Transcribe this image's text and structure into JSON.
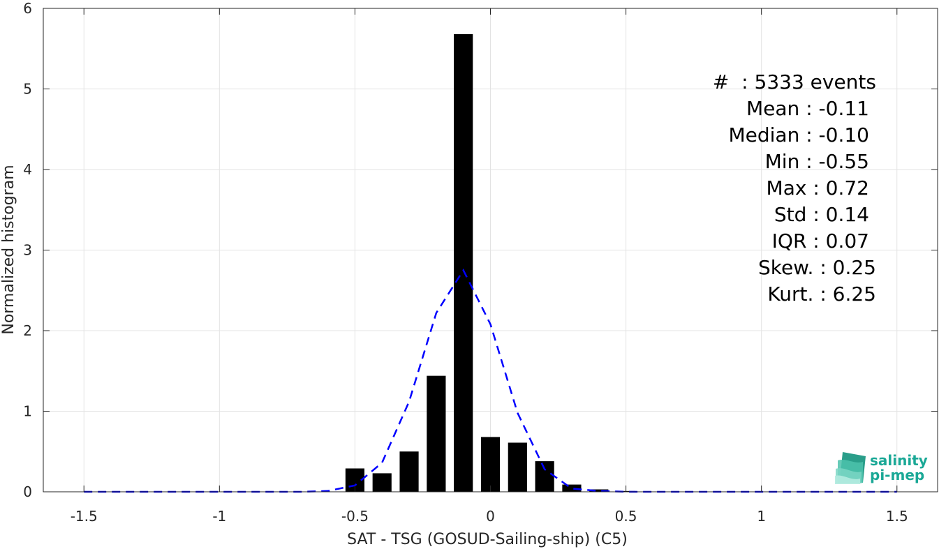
{
  "chart_data": {
    "type": "bar",
    "xlabel": "SAT - TSG (GOSUD-Sailing-ship) (C5)",
    "ylabel": "Normalized histogram",
    "xlim": [
      -1.65,
      1.65
    ],
    "ylim": [
      0,
      6
    ],
    "grid": true,
    "xticks": [
      -1.5,
      -1,
      -0.5,
      0,
      0.5,
      1,
      1.5
    ],
    "xtick_labels": [
      "-1.5",
      "-1",
      "-0.5",
      "0",
      "0.5",
      "1",
      "1.5"
    ],
    "yticks": [
      0,
      1,
      2,
      3,
      4,
      5,
      6
    ],
    "ytick_labels": [
      "0",
      "1",
      "2",
      "3",
      "4",
      "5",
      "6"
    ],
    "bar_width": 0.07,
    "bars": {
      "x": [
        -0.5,
        -0.4,
        -0.3,
        -0.2,
        -0.1,
        0.0,
        0.1,
        0.2,
        0.3,
        0.4,
        0.5
      ],
      "values": [
        0.29,
        0.23,
        0.5,
        1.44,
        5.68,
        0.68,
        0.61,
        0.38,
        0.09,
        0.03,
        0.01
      ],
      "color": "#000000"
    },
    "fit_curve": {
      "style": "dashed",
      "color": "#0000ff",
      "x": [
        -1.5,
        -1.4,
        -1.3,
        -1.2,
        -1.1,
        -1.0,
        -0.9,
        -0.8,
        -0.7,
        -0.6,
        -0.5,
        -0.4,
        -0.3,
        -0.2,
        -0.1,
        0.0,
        0.1,
        0.2,
        0.3,
        0.4,
        0.5,
        0.6,
        0.7,
        0.8,
        0.9,
        1.0,
        1.1,
        1.2,
        1.3,
        1.4,
        1.5
      ],
      "y": [
        0,
        0,
        0,
        0,
        0,
        0,
        0,
        0,
        0,
        0.01,
        0.08,
        0.36,
        1.12,
        2.22,
        2.75,
        2.08,
        0.98,
        0.28,
        0.04,
        0.01,
        0,
        0,
        0,
        0,
        0,
        0,
        0,
        0,
        0,
        0,
        0
      ]
    },
    "stats": [
      {
        "label": "#  : 5333 events"
      },
      {
        "label": "Mean : -0.11"
      },
      {
        "label": "Median : -0.10"
      },
      {
        "label": "Min : -0.55"
      },
      {
        "label": "Max : 0.72"
      },
      {
        "label": "Std : 0.14"
      },
      {
        "label": "IQR : 0.07"
      },
      {
        "label": "Skew. : 0.25"
      },
      {
        "label": "Kurt. : 6.25"
      }
    ]
  },
  "logo": {
    "line1": "salinity",
    "line2": "pi-mep",
    "color": "#1aa896"
  }
}
